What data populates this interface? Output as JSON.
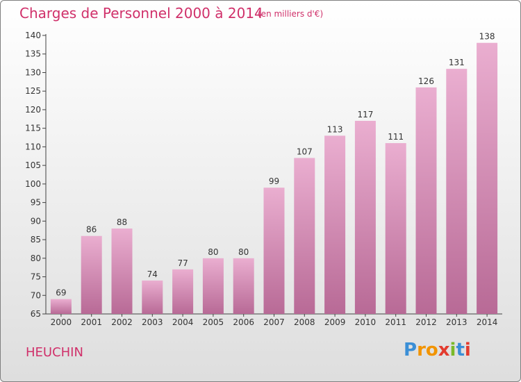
{
  "header": {
    "title": "Charges de Personnel 2000 à 2014",
    "subtitle": "(en milliers d'€)"
  },
  "footer": {
    "commune": "HEUCHIN",
    "logo": {
      "letters": [
        "P",
        "r",
        "o",
        "x",
        "i",
        "t",
        "i"
      ],
      "colors": [
        "#3b8fd6",
        "#f29400",
        "#f29400",
        "#e33b2e",
        "#7ab929",
        "#3b8fd6",
        "#e33b2e"
      ]
    }
  },
  "colors": {
    "bar_light": "#eaaed0",
    "bar_dark": "#b86a96",
    "text": "#d0306a",
    "axis": "#404040"
  },
  "chart_data": {
    "type": "bar",
    "title": "Charges de Personnel 2000 à 2014",
    "subtitle": "(en milliers d'€)",
    "categories": [
      "2000",
      "2001",
      "2002",
      "2003",
      "2004",
      "2005",
      "2006",
      "2007",
      "2008",
      "2009",
      "2010",
      "2011",
      "2012",
      "2013",
      "2014"
    ],
    "values": [
      69,
      86,
      88,
      74,
      77,
      80,
      80,
      99,
      107,
      113,
      117,
      111,
      126,
      131,
      138
    ],
    "ylim": [
      65,
      140
    ],
    "yticks": [
      65,
      70,
      75,
      80,
      85,
      90,
      95,
      100,
      105,
      110,
      115,
      120,
      125,
      130,
      135,
      140
    ],
    "grid": false,
    "data_labels": true
  }
}
